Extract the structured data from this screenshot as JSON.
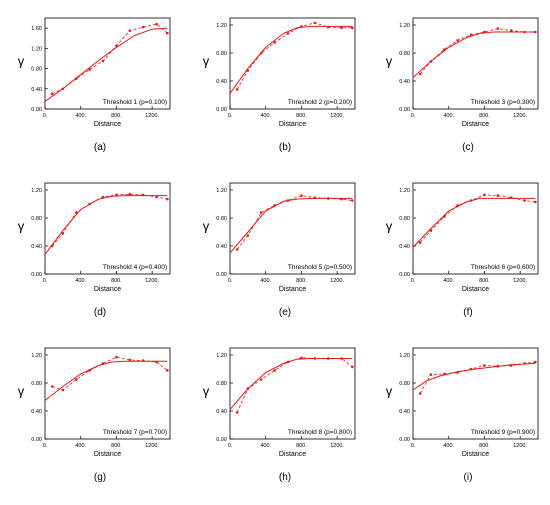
{
  "chart_data": [
    {
      "type": "scatter",
      "panel": "(a)",
      "label": "Threshold 1 (p=0.100)",
      "xlabel": "Distance",
      "ylabel": "γ",
      "xlim": [
        0,
        1400
      ],
      "ylim": [
        0,
        1.8
      ],
      "xticks": [
        "0.",
        "400.",
        "800.",
        "1200."
      ],
      "yticks": [
        "0.00",
        "0.40",
        "0.80",
        "1.20",
        "1.60"
      ],
      "series": [
        {
          "style": "dashed",
          "x": [
            80,
            200,
            350,
            500,
            650,
            800,
            950,
            1100,
            1250,
            1370
          ],
          "y": [
            0.3,
            0.4,
            0.6,
            0.78,
            0.95,
            1.25,
            1.55,
            1.62,
            1.68,
            1.5
          ]
        },
        {
          "style": "model",
          "x": [
            0,
            200,
            400,
            600,
            800,
            1000,
            1200,
            1370
          ],
          "y": [
            0.15,
            0.4,
            0.68,
            0.96,
            1.22,
            1.45,
            1.58,
            1.6
          ]
        }
      ]
    },
    {
      "type": "scatter",
      "panel": "(b)",
      "label": "Threshold 2 (p=0.200)",
      "xlabel": "Distance",
      "ylabel": "γ",
      "xlim": [
        0,
        1400
      ],
      "ylim": [
        0,
        1.3
      ],
      "xticks": [
        "0.",
        "400.",
        "800.",
        "1200."
      ],
      "yticks": [
        "0.00",
        "0.40",
        "0.80",
        "1.20"
      ],
      "series": [
        {
          "style": "dashed",
          "x": [
            80,
            200,
            350,
            500,
            650,
            800,
            950,
            1100,
            1250,
            1370
          ],
          "y": [
            0.28,
            0.55,
            0.8,
            0.95,
            1.08,
            1.18,
            1.23,
            1.17,
            1.16,
            1.16
          ]
        },
        {
          "style": "model",
          "x": [
            0,
            200,
            400,
            600,
            750,
            900,
            1100,
            1370
          ],
          "y": [
            0.22,
            0.58,
            0.88,
            1.08,
            1.16,
            1.18,
            1.18,
            1.18
          ]
        }
      ]
    },
    {
      "type": "scatter",
      "panel": "(c)",
      "label": "Threshold 3 (p=0.300)",
      "xlabel": "Distance",
      "ylabel": "γ",
      "xlim": [
        0,
        1400
      ],
      "ylim": [
        0,
        1.3
      ],
      "xticks": [
        "0.",
        "400.",
        "800.",
        "1200."
      ],
      "yticks": [
        "0.00",
        "0.40",
        "0.80",
        "1.20"
      ],
      "series": [
        {
          "style": "dashed",
          "x": [
            80,
            200,
            350,
            500,
            650,
            800,
            950,
            1100,
            1250,
            1370
          ],
          "y": [
            0.5,
            0.68,
            0.85,
            0.98,
            1.06,
            1.1,
            1.15,
            1.12,
            1.1,
            1.1
          ]
        },
        {
          "style": "model",
          "x": [
            0,
            200,
            400,
            600,
            750,
            900,
            1100,
            1370
          ],
          "y": [
            0.45,
            0.68,
            0.88,
            1.02,
            1.08,
            1.1,
            1.1,
            1.1
          ]
        }
      ]
    },
    {
      "type": "scatter",
      "panel": "(d)",
      "label": "Threshold 4 (p=0.400)",
      "xlabel": "Distance",
      "ylabel": "γ",
      "xlim": [
        0,
        1400
      ],
      "ylim": [
        0,
        1.3
      ],
      "xticks": [
        "0.",
        "400.",
        "800.",
        "1200."
      ],
      "yticks": [
        "0.00",
        "0.40",
        "0.80",
        "1.20"
      ],
      "series": [
        {
          "style": "dashed",
          "x": [
            80,
            200,
            350,
            500,
            650,
            800,
            950,
            1100,
            1250,
            1370
          ],
          "y": [
            0.4,
            0.58,
            0.88,
            1.0,
            1.1,
            1.13,
            1.14,
            1.13,
            1.1,
            1.07
          ]
        },
        {
          "style": "model",
          "x": [
            0,
            200,
            400,
            600,
            750,
            900,
            1100,
            1370
          ],
          "y": [
            0.28,
            0.62,
            0.92,
            1.07,
            1.11,
            1.12,
            1.12,
            1.12
          ]
        }
      ]
    },
    {
      "type": "scatter",
      "panel": "(e)",
      "label": "Threshold 5 (p=0.500)",
      "xlabel": "Distance",
      "ylabel": "γ",
      "xlim": [
        0,
        1400
      ],
      "ylim": [
        0,
        1.3
      ],
      "xticks": [
        "0.",
        "400.",
        "800.",
        "1200."
      ],
      "yticks": [
        "0.00",
        "0.40",
        "0.80",
        "1.20"
      ],
      "series": [
        {
          "style": "dashed",
          "x": [
            80,
            200,
            350,
            500,
            650,
            800,
            950,
            1100,
            1250,
            1370
          ],
          "y": [
            0.35,
            0.55,
            0.88,
            0.98,
            1.05,
            1.12,
            1.09,
            1.08,
            1.07,
            1.05
          ]
        },
        {
          "style": "model",
          "x": [
            0,
            200,
            400,
            600,
            750,
            900,
            1100,
            1370
          ],
          "y": [
            0.3,
            0.6,
            0.9,
            1.04,
            1.07,
            1.08,
            1.08,
            1.08
          ]
        }
      ]
    },
    {
      "type": "scatter",
      "panel": "(f)",
      "label": "Threshold 6 (p=0.600)",
      "xlabel": "Distance",
      "ylabel": "γ",
      "xlim": [
        0,
        1400
      ],
      "ylim": [
        0,
        1.3
      ],
      "xticks": [
        "0.",
        "400.",
        "800.",
        "1200."
      ],
      "yticks": [
        "0.00",
        "0.40",
        "0.80",
        "1.20"
      ],
      "series": [
        {
          "style": "dashed",
          "x": [
            80,
            200,
            350,
            500,
            650,
            800,
            950,
            1100,
            1250,
            1370
          ],
          "y": [
            0.45,
            0.62,
            0.82,
            0.98,
            1.05,
            1.13,
            1.12,
            1.09,
            1.05,
            1.03
          ]
        },
        {
          "style": "model",
          "x": [
            0,
            200,
            400,
            600,
            750,
            900,
            1100,
            1370
          ],
          "y": [
            0.38,
            0.65,
            0.9,
            1.03,
            1.08,
            1.08,
            1.08,
            1.08
          ]
        }
      ]
    },
    {
      "type": "scatter",
      "panel": "(g)",
      "label": "Threshold 7 (p=0.700)",
      "xlabel": "Distance",
      "ylabel": "γ",
      "xlim": [
        0,
        1400
      ],
      "ylim": [
        0,
        1.3
      ],
      "xticks": [
        "0.",
        "400.",
        "800.",
        "1200."
      ],
      "yticks": [
        "0.00",
        "0.40",
        "0.80",
        "1.20"
      ],
      "series": [
        {
          "style": "dashed",
          "x": [
            80,
            200,
            350,
            500,
            650,
            800,
            950,
            1100,
            1250,
            1370
          ],
          "y": [
            0.75,
            0.7,
            0.85,
            0.98,
            1.08,
            1.17,
            1.13,
            1.12,
            1.1,
            0.98
          ]
        },
        {
          "style": "model",
          "x": [
            0,
            200,
            400,
            600,
            750,
            900,
            1100,
            1370
          ],
          "y": [
            0.55,
            0.75,
            0.93,
            1.05,
            1.1,
            1.11,
            1.11,
            1.11
          ]
        }
      ]
    },
    {
      "type": "scatter",
      "panel": "(h)",
      "label": "Threshold 8 (p=0.800)",
      "xlabel": "Distance",
      "ylabel": "γ",
      "xlim": [
        0,
        1400
      ],
      "ylim": [
        0,
        1.3
      ],
      "xticks": [
        "0.",
        "400.",
        "800.",
        "1200."
      ],
      "yticks": [
        "0.00",
        "0.40",
        "0.80",
        "1.20"
      ],
      "series": [
        {
          "style": "dashed",
          "x": [
            80,
            200,
            350,
            500,
            650,
            800,
            950,
            1100,
            1250,
            1370
          ],
          "y": [
            0.38,
            0.72,
            0.85,
            0.98,
            1.1,
            1.16,
            1.15,
            1.15,
            1.15,
            1.03
          ]
        },
        {
          "style": "model",
          "x": [
            0,
            200,
            400,
            600,
            750,
            900,
            1100,
            1370
          ],
          "y": [
            0.42,
            0.72,
            0.95,
            1.08,
            1.14,
            1.15,
            1.15,
            1.15
          ]
        }
      ]
    },
    {
      "type": "scatter",
      "panel": "(i)",
      "label": "Threshold 9 (p=0.900)",
      "xlabel": "Distance",
      "ylabel": "γ",
      "xlim": [
        0,
        1400
      ],
      "ylim": [
        0,
        1.3
      ],
      "xticks": [
        "0.",
        "400.",
        "800.",
        "1200."
      ],
      "yticks": [
        "0.00",
        "0.40",
        "0.80",
        "1.20"
      ],
      "series": [
        {
          "style": "dashed",
          "x": [
            80,
            200,
            350,
            500,
            650,
            800,
            950,
            1100,
            1250,
            1370
          ],
          "y": [
            0.65,
            0.92,
            0.93,
            0.95,
            1.0,
            1.05,
            1.04,
            1.05,
            1.08,
            1.1
          ]
        },
        {
          "style": "model",
          "x": [
            0,
            150,
            300,
            500,
            700,
            900,
            1100,
            1370
          ],
          "y": [
            0.7,
            0.83,
            0.9,
            0.96,
            1.0,
            1.03,
            1.06,
            1.08
          ]
        }
      ]
    }
  ],
  "colors": {
    "line": "#e41a1c",
    "axis": "#000000"
  }
}
